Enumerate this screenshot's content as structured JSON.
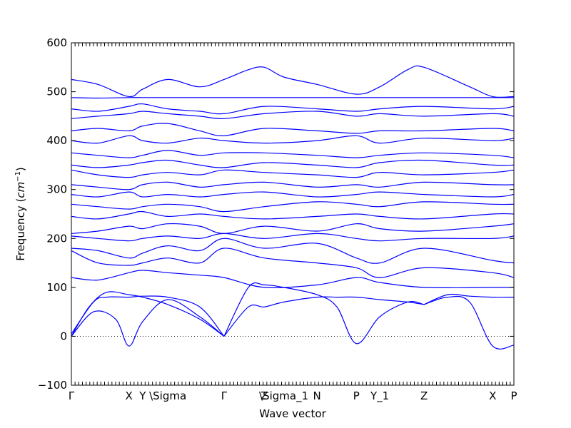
{
  "chart_data": {
    "type": "line",
    "title": "",
    "xlabel": "Wave vector",
    "ylabel": "Frequency (cm⁻¹)",
    "ylabel_main": "Frequency (",
    "ylabel_unit": "cm",
    "ylabel_exp": "−1",
    "ylabel_close": ")",
    "ylim": [
      -100,
      600
    ],
    "xlim": [
      0,
      1
    ],
    "yticks": [
      -100,
      0,
      100,
      200,
      300,
      400,
      500,
      600
    ],
    "ytick_labels": [
      "−100",
      "0",
      "100",
      "200",
      "300",
      "400",
      "500",
      "600"
    ],
    "grid": false,
    "zero_line": true,
    "high_symmetry_points": [
      {
        "label": "Γ",
        "x": 0.0
      },
      {
        "label": "X",
        "x": 0.13
      },
      {
        "label": "Y",
        "x": 0.161
      },
      {
        "label": "\\Sigma",
        "x": 0.218
      },
      {
        "label": "Γ",
        "x": 0.345
      },
      {
        "label": "Z",
        "x": 0.436
      },
      {
        "label": "\\Sigma_1",
        "x": 0.48
      },
      {
        "label": "N",
        "x": 0.555
      },
      {
        "label": "P",
        "x": 0.644
      },
      {
        "label": "Y_1",
        "x": 0.697
      },
      {
        "label": "Z",
        "x": 0.797
      },
      {
        "label": "X",
        "x": 0.952
      },
      {
        "label": "P",
        "x": 1.0
      }
    ],
    "series_color": "#0000ff",
    "series": [
      {
        "x": [
          0.0,
          0.05,
          0.1,
          0.13,
          0.161,
          0.218,
          0.29,
          0.345
        ],
        "y": [
          0,
          50,
          35,
          -20,
          30,
          75,
          40,
          0
        ]
      },
      {
        "x": [
          0.0,
          0.04,
          0.08,
          0.13,
          0.161,
          0.218,
          0.29,
          0.345
        ],
        "y": [
          0,
          60,
          90,
          85,
          80,
          65,
          35,
          0
        ]
      },
      {
        "x": [
          0.0,
          0.05,
          0.08,
          0.13,
          0.161,
          0.218,
          0.29,
          0.345
        ],
        "y": [
          5,
          70,
          80,
          80,
          82,
          80,
          60,
          0
        ]
      },
      {
        "x": [
          0.345,
          0.4,
          0.436,
          0.48,
          0.555,
          0.6,
          0.644,
          0.697,
          0.76,
          0.797
        ],
        "y": [
          0,
          100,
          105,
          100,
          85,
          60,
          -15,
          40,
          70,
          65
        ]
      },
      {
        "x": [
          0.345,
          0.4,
          0.436,
          0.48,
          0.555,
          0.6,
          0.644,
          0.697,
          0.76,
          0.797
        ],
        "y": [
          0,
          60,
          60,
          70,
          80,
          80,
          80,
          75,
          70,
          65
        ]
      },
      {
        "x": [
          0.797,
          0.85,
          0.9,
          0.952,
          1.0
        ],
        "y": [
          65,
          80,
          70,
          -20,
          -18
        ]
      },
      {
        "x": [
          0.797,
          0.85,
          0.9,
          0.952,
          1.0
        ],
        "y": [
          65,
          85,
          82,
          80,
          80
        ]
      },
      {
        "x": [
          0.0,
          0.06,
          0.13,
          0.161,
          0.218,
          0.29,
          0.345,
          0.436,
          0.555,
          0.644,
          0.697,
          0.797,
          0.952,
          1.0
        ],
        "y": [
          120,
          115,
          130,
          135,
          130,
          125,
          120,
          100,
          105,
          120,
          110,
          100,
          100,
          100
        ]
      },
      {
        "x": [
          0.0,
          0.06,
          0.13,
          0.161,
          0.218,
          0.29,
          0.345,
          0.436,
          0.555,
          0.644,
          0.697,
          0.797,
          0.952,
          1.0
        ],
        "y": [
          175,
          150,
          145,
          150,
          160,
          150,
          180,
          160,
          150,
          140,
          120,
          140,
          130,
          120
        ]
      },
      {
        "x": [
          0.0,
          0.06,
          0.13,
          0.161,
          0.218,
          0.29,
          0.345,
          0.436,
          0.555,
          0.644,
          0.697,
          0.797,
          0.952,
          1.0
        ],
        "y": [
          180,
          175,
          160,
          170,
          185,
          175,
          200,
          180,
          190,
          160,
          150,
          180,
          155,
          150
        ]
      },
      {
        "x": [
          0.0,
          0.06,
          0.13,
          0.161,
          0.218,
          0.29,
          0.345,
          0.436,
          0.555,
          0.644,
          0.697,
          0.797,
          0.952,
          1.0
        ],
        "y": [
          205,
          200,
          195,
          200,
          205,
          200,
          210,
          200,
          210,
          200,
          195,
          200,
          200,
          205
        ]
      },
      {
        "x": [
          0.0,
          0.06,
          0.13,
          0.161,
          0.218,
          0.29,
          0.345,
          0.436,
          0.555,
          0.644,
          0.697,
          0.797,
          0.952,
          1.0
        ],
        "y": [
          210,
          215,
          225,
          220,
          230,
          225,
          210,
          225,
          215,
          230,
          220,
          215,
          225,
          230
        ]
      },
      {
        "x": [
          0.0,
          0.06,
          0.13,
          0.161,
          0.218,
          0.29,
          0.345,
          0.436,
          0.555,
          0.644,
          0.697,
          0.797,
          0.952,
          1.0
        ],
        "y": [
          245,
          240,
          250,
          255,
          245,
          250,
          245,
          240,
          245,
          250,
          245,
          240,
          250,
          250
        ]
      },
      {
        "x": [
          0.0,
          0.06,
          0.13,
          0.161,
          0.218,
          0.29,
          0.345,
          0.436,
          0.555,
          0.644,
          0.697,
          0.797,
          0.952,
          1.0
        ],
        "y": [
          270,
          265,
          260,
          265,
          270,
          265,
          255,
          265,
          275,
          270,
          265,
          275,
          270,
          270
        ]
      },
      {
        "x": [
          0.0,
          0.06,
          0.13,
          0.161,
          0.218,
          0.29,
          0.345,
          0.436,
          0.555,
          0.644,
          0.697,
          0.797,
          0.952,
          1.0
        ],
        "y": [
          290,
          285,
          295,
          285,
          290,
          285,
          290,
          295,
          285,
          290,
          295,
          290,
          285,
          290
        ]
      },
      {
        "x": [
          0.0,
          0.06,
          0.13,
          0.161,
          0.218,
          0.29,
          0.345,
          0.436,
          0.555,
          0.644,
          0.697,
          0.797,
          0.952,
          1.0
        ],
        "y": [
          310,
          305,
          300,
          310,
          315,
          305,
          310,
          315,
          305,
          310,
          305,
          315,
          310,
          310
        ]
      },
      {
        "x": [
          0.0,
          0.06,
          0.13,
          0.161,
          0.218,
          0.29,
          0.345,
          0.436,
          0.555,
          0.644,
          0.697,
          0.797,
          0.952,
          1.0
        ],
        "y": [
          340,
          330,
          325,
          330,
          335,
          330,
          340,
          335,
          330,
          325,
          335,
          330,
          335,
          340
        ]
      },
      {
        "x": [
          0.0,
          0.06,
          0.13,
          0.161,
          0.218,
          0.29,
          0.345,
          0.436,
          0.555,
          0.644,
          0.697,
          0.797,
          0.952,
          1.0
        ],
        "y": [
          350,
          345,
          350,
          355,
          360,
          350,
          345,
          355,
          350,
          345,
          355,
          360,
          350,
          350
        ]
      },
      {
        "x": [
          0.0,
          0.06,
          0.13,
          0.161,
          0.218,
          0.29,
          0.345,
          0.436,
          0.555,
          0.644,
          0.697,
          0.797,
          0.952,
          1.0
        ],
        "y": [
          375,
          370,
          365,
          370,
          380,
          370,
          375,
          375,
          370,
          365,
          370,
          375,
          370,
          365
        ]
      },
      {
        "x": [
          0.0,
          0.06,
          0.13,
          0.161,
          0.218,
          0.29,
          0.345,
          0.436,
          0.555,
          0.644,
          0.697,
          0.797,
          0.952,
          1.0
        ],
        "y": [
          400,
          395,
          410,
          400,
          395,
          405,
          400,
          395,
          400,
          410,
          395,
          405,
          400,
          405
        ]
      },
      {
        "x": [
          0.0,
          0.06,
          0.13,
          0.161,
          0.218,
          0.29,
          0.345,
          0.436,
          0.555,
          0.644,
          0.697,
          0.797,
          0.952,
          1.0
        ],
        "y": [
          420,
          425,
          420,
          430,
          435,
          420,
          410,
          425,
          420,
          415,
          420,
          420,
          425,
          420
        ]
      },
      {
        "x": [
          0.0,
          0.06,
          0.13,
          0.161,
          0.218,
          0.29,
          0.345,
          0.436,
          0.555,
          0.644,
          0.697,
          0.797,
          0.952,
          1.0
        ],
        "y": [
          445,
          450,
          455,
          460,
          455,
          450,
          445,
          455,
          460,
          450,
          455,
          450,
          455,
          450
        ]
      },
      {
        "x": [
          0.0,
          0.06,
          0.13,
          0.161,
          0.218,
          0.29,
          0.345,
          0.436,
          0.555,
          0.644,
          0.697,
          0.797,
          0.952,
          1.0
        ],
        "y": [
          465,
          460,
          470,
          475,
          465,
          460,
          455,
          470,
          465,
          460,
          465,
          470,
          465,
          470
        ]
      },
      {
        "x": [
          0.0,
          0.06,
          0.13,
          0.161,
          0.218,
          0.29,
          0.345,
          0.436,
          0.555,
          0.644,
          0.697,
          0.797,
          0.952,
          1.0
        ],
        "y": [
          488,
          487,
          488,
          488,
          488,
          488,
          488,
          488,
          488,
          488,
          488,
          488,
          488,
          488
        ]
      },
      {
        "x": [
          0.0,
          0.06,
          0.13,
          0.161,
          0.218,
          0.29,
          0.345,
          0.4,
          0.436,
          0.48,
          0.555,
          0.644,
          0.697,
          0.76,
          0.797,
          0.9,
          0.952,
          1.0
        ],
        "y": [
          525,
          515,
          490,
          505,
          525,
          510,
          525,
          545,
          550,
          530,
          515,
          495,
          510,
          545,
          550,
          510,
          490,
          490
        ]
      }
    ]
  }
}
